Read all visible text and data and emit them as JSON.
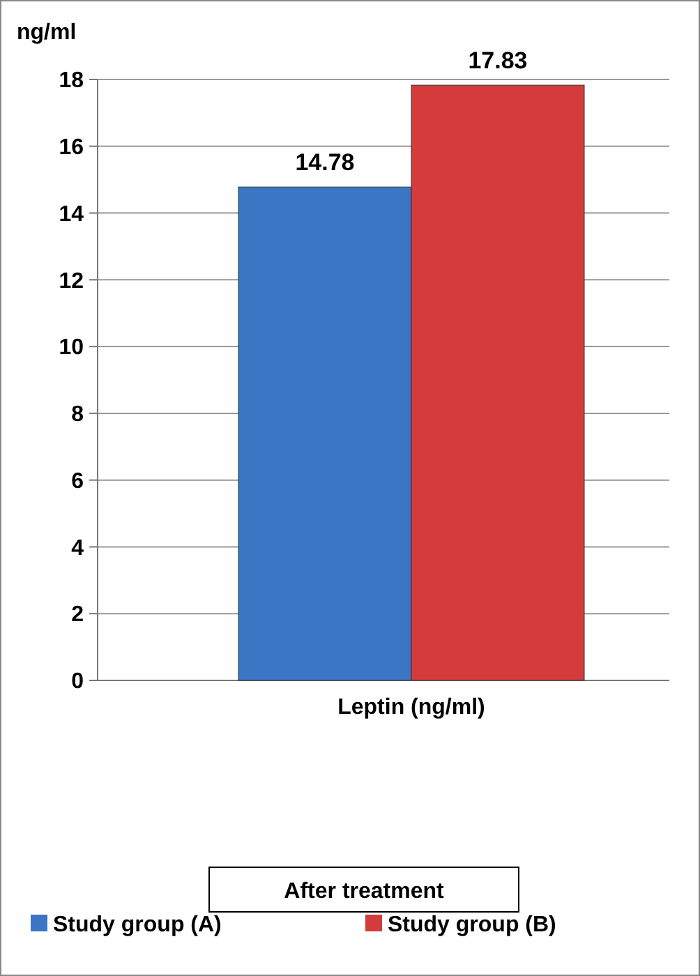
{
  "chart_data": {
    "type": "bar",
    "ylabel": "ng/ml",
    "categories": [
      "Leptin (ng/ml)"
    ],
    "series": [
      {
        "name": "Study group (A)",
        "color": "#3a76c4",
        "values": [
          14.78
        ]
      },
      {
        "name": "Study group (B)",
        "color": "#d43c3c",
        "values": [
          17.83
        ]
      }
    ],
    "ylim": [
      0,
      18
    ],
    "yticks": [
      0,
      2,
      4,
      6,
      8,
      10,
      12,
      14,
      16,
      18
    ],
    "grid": "y",
    "legend": "bottom",
    "legend_title": "After treatment",
    "data_labels": true
  }
}
